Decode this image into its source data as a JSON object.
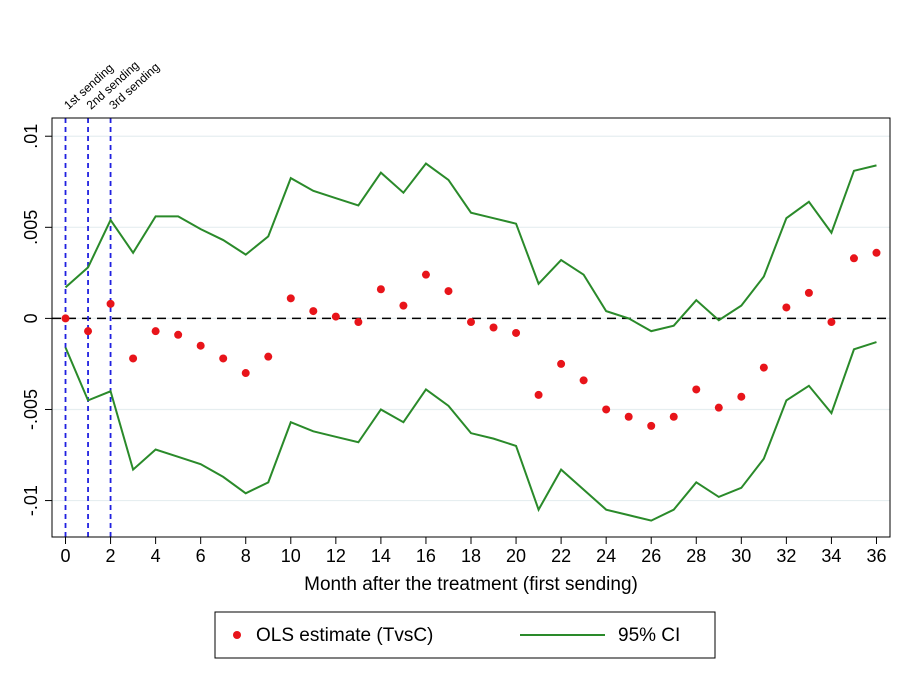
{
  "chart_data": {
    "type": "scatter",
    "x_label": "Month after the treatment (first sending)",
    "x": [
      0,
      1,
      2,
      3,
      4,
      5,
      6,
      7,
      8,
      9,
      10,
      11,
      12,
      13,
      14,
      15,
      16,
      17,
      18,
      19,
      20,
      21,
      22,
      23,
      24,
      25,
      26,
      27,
      28,
      29,
      30,
      31,
      32,
      33,
      34,
      35,
      36
    ],
    "series": [
      {
        "name": "OLS estimate (TvsC)",
        "color": "#e8141a",
        "values": [
          0.0,
          -0.0007,
          0.0008,
          -0.0022,
          -0.0007,
          -0.0009,
          -0.0015,
          -0.0022,
          -0.003,
          -0.0021,
          0.0011,
          0.0004,
          0.0001,
          -0.0002,
          0.0016,
          0.0007,
          0.0024,
          0.0015,
          -0.0002,
          -0.0005,
          -0.0008,
          -0.0042,
          -0.0025,
          -0.0034,
          -0.005,
          -0.0054,
          -0.0059,
          -0.0054,
          -0.0039,
          -0.0049,
          -0.0043,
          -0.0027,
          0.0006,
          0.0014,
          -0.0002,
          0.0033,
          0.0036
        ]
      }
    ],
    "ci": {
      "name": "95% CI",
      "color": "#2a8a2a",
      "upper": [
        0.0017,
        0.0028,
        0.0054,
        0.0036,
        0.0056,
        0.0056,
        0.0049,
        0.0043,
        0.0035,
        0.0045,
        0.0077,
        0.007,
        0.0066,
        0.0062,
        0.008,
        0.0069,
        0.0085,
        0.0076,
        0.0058,
        0.0055,
        0.0052,
        0.0019,
        0.0032,
        0.0024,
        0.0004,
        0.0,
        -0.0007,
        -0.0004,
        0.001,
        -0.0001,
        0.0007,
        0.0023,
        0.0055,
        0.0064,
        0.0047,
        0.0081,
        0.0084
      ],
      "lower": [
        -0.0016,
        -0.0045,
        -0.004,
        -0.0083,
        -0.0072,
        -0.0076,
        -0.008,
        -0.0087,
        -0.0096,
        -0.009,
        -0.0057,
        -0.0062,
        -0.0065,
        -0.0068,
        -0.005,
        -0.0057,
        -0.0039,
        -0.0048,
        -0.0063,
        -0.0066,
        -0.007,
        -0.0105,
        -0.0083,
        -0.0094,
        -0.0105,
        -0.0108,
        -0.0111,
        -0.0105,
        -0.009,
        -0.0098,
        -0.0093,
        -0.0077,
        -0.0045,
        -0.0037,
        -0.0052,
        -0.0017,
        -0.0013
      ]
    },
    "vlines": [
      {
        "x": 0,
        "label": "1st sending"
      },
      {
        "x": 1,
        "label": "2nd sending"
      },
      {
        "x": 2,
        "label": "3rd sending"
      }
    ],
    "vline_color": "#2020e0",
    "hline": 0,
    "xlim": [
      -0.6,
      36.6
    ],
    "ylim": [
      -0.012,
      0.011
    ],
    "xticks": [
      0,
      2,
      4,
      6,
      8,
      10,
      12,
      14,
      16,
      18,
      20,
      22,
      24,
      26,
      28,
      30,
      32,
      34,
      36
    ],
    "yticks": [
      {
        "value": -0.01,
        "label": "-.01"
      },
      {
        "value": -0.005,
        "label": "-.005"
      },
      0,
      {
        "value": 0.005,
        "label": ".005"
      },
      {
        "value": 0.01,
        "label": ".01"
      }
    ],
    "grid": true
  }
}
